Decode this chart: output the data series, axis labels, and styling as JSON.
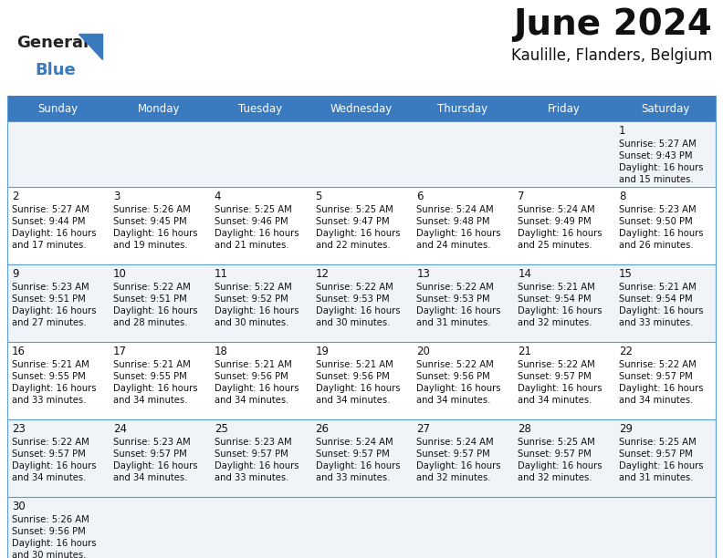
{
  "title": "June 2024",
  "subtitle": "Kaulille, Flanders, Belgium",
  "header_color": "#3a7abf",
  "header_text_color": "#ffffff",
  "weekdays": [
    "Sunday",
    "Monday",
    "Tuesday",
    "Wednesday",
    "Thursday",
    "Friday",
    "Saturday"
  ],
  "row_bg_colors": [
    "#f0f4f8",
    "#ffffff",
    "#f0f4f8",
    "#ffffff",
    "#f0f4f8",
    "#f0f4f8"
  ],
  "border_color": "#5b9bd5",
  "calendar_data": [
    [
      null,
      null,
      null,
      null,
      null,
      null,
      {
        "day": "1",
        "sunrise": "5:27 AM",
        "sunset": "9:43 PM",
        "daylight_h": "16 hours",
        "daylight_m": "and 15 minutes."
      }
    ],
    [
      {
        "day": "2",
        "sunrise": "5:27 AM",
        "sunset": "9:44 PM",
        "daylight_h": "16 hours",
        "daylight_m": "and 17 minutes."
      },
      {
        "day": "3",
        "sunrise": "5:26 AM",
        "sunset": "9:45 PM",
        "daylight_h": "16 hours",
        "daylight_m": "and 19 minutes."
      },
      {
        "day": "4",
        "sunrise": "5:25 AM",
        "sunset": "9:46 PM",
        "daylight_h": "16 hours",
        "daylight_m": "and 21 minutes."
      },
      {
        "day": "5",
        "sunrise": "5:25 AM",
        "sunset": "9:47 PM",
        "daylight_h": "16 hours",
        "daylight_m": "and 22 minutes."
      },
      {
        "day": "6",
        "sunrise": "5:24 AM",
        "sunset": "9:48 PM",
        "daylight_h": "16 hours",
        "daylight_m": "and 24 minutes."
      },
      {
        "day": "7",
        "sunrise": "5:24 AM",
        "sunset": "9:49 PM",
        "daylight_h": "16 hours",
        "daylight_m": "and 25 minutes."
      },
      {
        "day": "8",
        "sunrise": "5:23 AM",
        "sunset": "9:50 PM",
        "daylight_h": "16 hours",
        "daylight_m": "and 26 minutes."
      }
    ],
    [
      {
        "day": "9",
        "sunrise": "5:23 AM",
        "sunset": "9:51 PM",
        "daylight_h": "16 hours",
        "daylight_m": "and 27 minutes."
      },
      {
        "day": "10",
        "sunrise": "5:22 AM",
        "sunset": "9:51 PM",
        "daylight_h": "16 hours",
        "daylight_m": "and 28 minutes."
      },
      {
        "day": "11",
        "sunrise": "5:22 AM",
        "sunset": "9:52 PM",
        "daylight_h": "16 hours",
        "daylight_m": "and 30 minutes."
      },
      {
        "day": "12",
        "sunrise": "5:22 AM",
        "sunset": "9:53 PM",
        "daylight_h": "16 hours",
        "daylight_m": "and 30 minutes."
      },
      {
        "day": "13",
        "sunrise": "5:22 AM",
        "sunset": "9:53 PM",
        "daylight_h": "16 hours",
        "daylight_m": "and 31 minutes."
      },
      {
        "day": "14",
        "sunrise": "5:21 AM",
        "sunset": "9:54 PM",
        "daylight_h": "16 hours",
        "daylight_m": "and 32 minutes."
      },
      {
        "day": "15",
        "sunrise": "5:21 AM",
        "sunset": "9:54 PM",
        "daylight_h": "16 hours",
        "daylight_m": "and 33 minutes."
      }
    ],
    [
      {
        "day": "16",
        "sunrise": "5:21 AM",
        "sunset": "9:55 PM",
        "daylight_h": "16 hours",
        "daylight_m": "and 33 minutes."
      },
      {
        "day": "17",
        "sunrise": "5:21 AM",
        "sunset": "9:55 PM",
        "daylight_h": "16 hours",
        "daylight_m": "and 34 minutes."
      },
      {
        "day": "18",
        "sunrise": "5:21 AM",
        "sunset": "9:56 PM",
        "daylight_h": "16 hours",
        "daylight_m": "and 34 minutes."
      },
      {
        "day": "19",
        "sunrise": "5:21 AM",
        "sunset": "9:56 PM",
        "daylight_h": "16 hours",
        "daylight_m": "and 34 minutes."
      },
      {
        "day": "20",
        "sunrise": "5:22 AM",
        "sunset": "9:56 PM",
        "daylight_h": "16 hours",
        "daylight_m": "and 34 minutes."
      },
      {
        "day": "21",
        "sunrise": "5:22 AM",
        "sunset": "9:57 PM",
        "daylight_h": "16 hours",
        "daylight_m": "and 34 minutes."
      },
      {
        "day": "22",
        "sunrise": "5:22 AM",
        "sunset": "9:57 PM",
        "daylight_h": "16 hours",
        "daylight_m": "and 34 minutes."
      }
    ],
    [
      {
        "day": "23",
        "sunrise": "5:22 AM",
        "sunset": "9:57 PM",
        "daylight_h": "16 hours",
        "daylight_m": "and 34 minutes."
      },
      {
        "day": "24",
        "sunrise": "5:23 AM",
        "sunset": "9:57 PM",
        "daylight_h": "16 hours",
        "daylight_m": "and 34 minutes."
      },
      {
        "day": "25",
        "sunrise": "5:23 AM",
        "sunset": "9:57 PM",
        "daylight_h": "16 hours",
        "daylight_m": "and 33 minutes."
      },
      {
        "day": "26",
        "sunrise": "5:24 AM",
        "sunset": "9:57 PM",
        "daylight_h": "16 hours",
        "daylight_m": "and 33 minutes."
      },
      {
        "day": "27",
        "sunrise": "5:24 AM",
        "sunset": "9:57 PM",
        "daylight_h": "16 hours",
        "daylight_m": "and 32 minutes."
      },
      {
        "day": "28",
        "sunrise": "5:25 AM",
        "sunset": "9:57 PM",
        "daylight_h": "16 hours",
        "daylight_m": "and 32 minutes."
      },
      {
        "day": "29",
        "sunrise": "5:25 AM",
        "sunset": "9:57 PM",
        "daylight_h": "16 hours",
        "daylight_m": "and 31 minutes."
      }
    ],
    [
      {
        "day": "30",
        "sunrise": "5:26 AM",
        "sunset": "9:56 PM",
        "daylight_h": "16 hours",
        "daylight_m": "and 30 minutes."
      },
      null,
      null,
      null,
      null,
      null,
      null
    ]
  ]
}
